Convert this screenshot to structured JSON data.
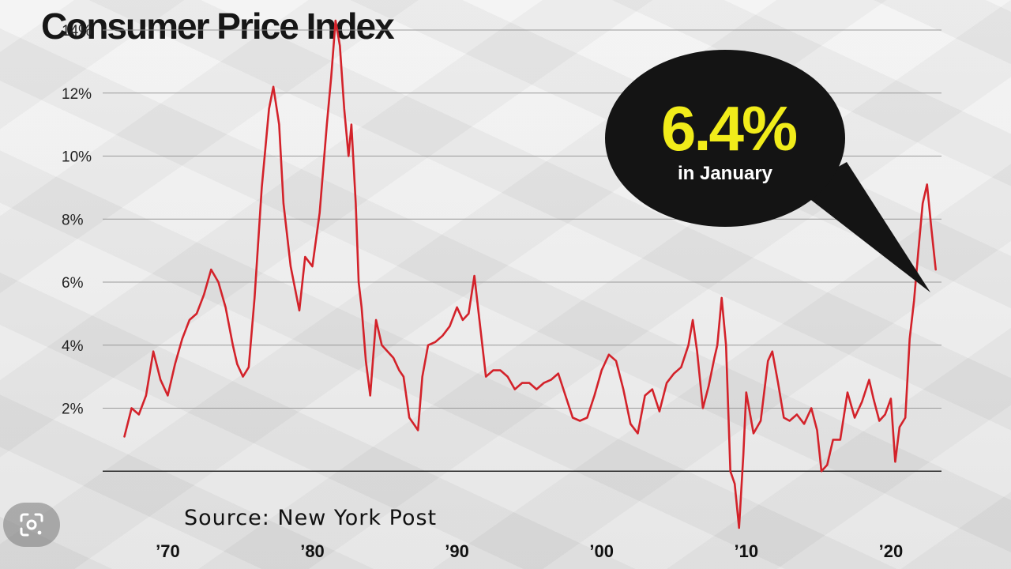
{
  "title": "Consumer Price Index",
  "source": "Source:  New York Post",
  "callout": {
    "value": "6.4%",
    "caption": "in January"
  },
  "colors": {
    "line": "#d3222a",
    "callout_bg": "#141414",
    "callout_value": "#f1ec1a",
    "grid": "#9a9a9a"
  },
  "lens_button": {
    "icon": "google-lens-icon"
  },
  "chart_data": {
    "type": "line",
    "title": "Consumer Price Index",
    "xlabel": "",
    "ylabel": "",
    "y_ticks": [
      "2%",
      "4%",
      "6%",
      "8%",
      "10%",
      "12%",
      "14%"
    ],
    "x_ticks": [
      "’70",
      "’80",
      "’90",
      "’00",
      "’10",
      "’20"
    ],
    "y_tick_values": [
      2,
      4,
      6,
      8,
      10,
      12,
      14
    ],
    "x_tick_values": [
      1970,
      1980,
      1990,
      2000,
      2010,
      2020
    ],
    "ylim": [
      -2,
      14
    ],
    "xlim": [
      1965.5,
      2023.5
    ],
    "grid": true,
    "legend": "none",
    "series": [
      {
        "values": [
          [
            1967.0,
            1.1
          ],
          [
            1967.5,
            2.0
          ],
          [
            1968.0,
            1.8
          ],
          [
            1968.5,
            2.4
          ],
          [
            1969.0,
            3.8
          ],
          [
            1969.5,
            2.9
          ],
          [
            1970.0,
            2.4
          ],
          [
            1970.5,
            3.4
          ],
          [
            1971.0,
            4.2
          ],
          [
            1971.5,
            4.8
          ],
          [
            1972.0,
            5.0
          ],
          [
            1972.5,
            5.6
          ],
          [
            1973.0,
            6.4
          ],
          [
            1973.5,
            6.0
          ],
          [
            1974.0,
            5.2
          ],
          [
            1974.5,
            4.0
          ],
          [
            1974.8,
            3.4
          ],
          [
            1975.2,
            3.0
          ],
          [
            1975.6,
            3.3
          ],
          [
            1976.0,
            5.5
          ],
          [
            1976.5,
            9.0
          ],
          [
            1977.0,
            11.5
          ],
          [
            1977.3,
            12.2
          ],
          [
            1977.7,
            11.0
          ],
          [
            1978.0,
            8.5
          ],
          [
            1978.5,
            6.5
          ],
          [
            1978.8,
            5.8
          ],
          [
            1979.1,
            5.1
          ],
          [
            1979.5,
            6.8
          ],
          [
            1980.0,
            6.5
          ],
          [
            1980.5,
            8.2
          ],
          [
            1981.0,
            11.0
          ],
          [
            1981.3,
            12.5
          ],
          [
            1981.6,
            14.3
          ],
          [
            1981.9,
            13.5
          ],
          [
            1982.2,
            11.5
          ],
          [
            1982.5,
            10.0
          ],
          [
            1982.7,
            11.0
          ],
          [
            1983.0,
            8.5
          ],
          [
            1983.2,
            6.0
          ],
          [
            1983.4,
            5.2
          ],
          [
            1983.7,
            3.5
          ],
          [
            1984.0,
            2.4
          ],
          [
            1984.4,
            4.8
          ],
          [
            1984.8,
            4.0
          ],
          [
            1985.2,
            3.8
          ],
          [
            1985.6,
            3.6
          ],
          [
            1986.0,
            3.2
          ],
          [
            1986.3,
            3.0
          ],
          [
            1986.7,
            1.7
          ],
          [
            1987.0,
            1.5
          ],
          [
            1987.3,
            1.3
          ],
          [
            1987.6,
            3.0
          ],
          [
            1988.0,
            4.0
          ],
          [
            1988.5,
            4.1
          ],
          [
            1989.0,
            4.3
          ],
          [
            1989.5,
            4.6
          ],
          [
            1990.0,
            5.2
          ],
          [
            1990.4,
            4.8
          ],
          [
            1990.8,
            5.0
          ],
          [
            1991.2,
            6.2
          ],
          [
            1991.6,
            4.6
          ],
          [
            1992.0,
            3.0
          ],
          [
            1992.5,
            3.2
          ],
          [
            1993.0,
            3.2
          ],
          [
            1993.5,
            3.0
          ],
          [
            1994.0,
            2.6
          ],
          [
            1994.5,
            2.8
          ],
          [
            1995.0,
            2.8
          ],
          [
            1995.5,
            2.6
          ],
          [
            1996.0,
            2.8
          ],
          [
            1996.5,
            2.9
          ],
          [
            1997.0,
            3.1
          ],
          [
            1997.5,
            2.4
          ],
          [
            1998.0,
            1.7
          ],
          [
            1998.5,
            1.6
          ],
          [
            1999.0,
            1.7
          ],
          [
            1999.5,
            2.4
          ],
          [
            2000.0,
            3.2
          ],
          [
            2000.5,
            3.7
          ],
          [
            2001.0,
            3.5
          ],
          [
            2001.5,
            2.6
          ],
          [
            2002.0,
            1.5
          ],
          [
            2002.5,
            1.2
          ],
          [
            2003.0,
            2.4
          ],
          [
            2003.5,
            2.6
          ],
          [
            2004.0,
            1.9
          ],
          [
            2004.5,
            2.8
          ],
          [
            2005.0,
            3.1
          ],
          [
            2005.5,
            3.3
          ],
          [
            2006.0,
            4.0
          ],
          [
            2006.3,
            4.8
          ],
          [
            2006.6,
            3.8
          ],
          [
            2007.0,
            2.0
          ],
          [
            2007.4,
            2.7
          ],
          [
            2007.8,
            3.6
          ],
          [
            2008.0,
            4.0
          ],
          [
            2008.3,
            5.5
          ],
          [
            2008.6,
            4.0
          ],
          [
            2008.9,
            0.0
          ],
          [
            2009.2,
            -0.4
          ],
          [
            2009.5,
            -1.8
          ],
          [
            2009.8,
            0.5
          ],
          [
            2010.0,
            2.5
          ],
          [
            2010.5,
            1.2
          ],
          [
            2011.0,
            1.6
          ],
          [
            2011.5,
            3.5
          ],
          [
            2011.8,
            3.8
          ],
          [
            2012.2,
            2.8
          ],
          [
            2012.6,
            1.7
          ],
          [
            2013.0,
            1.6
          ],
          [
            2013.5,
            1.8
          ],
          [
            2014.0,
            1.5
          ],
          [
            2014.5,
            2.0
          ],
          [
            2014.9,
            1.3
          ],
          [
            2015.2,
            0.0
          ],
          [
            2015.6,
            0.2
          ],
          [
            2016.0,
            1.0
          ],
          [
            2016.5,
            1.0
          ],
          [
            2017.0,
            2.5
          ],
          [
            2017.5,
            1.7
          ],
          [
            2018.0,
            2.2
          ],
          [
            2018.5,
            2.9
          ],
          [
            2018.8,
            2.3
          ],
          [
            2019.2,
            1.6
          ],
          [
            2019.6,
            1.8
          ],
          [
            2020.0,
            2.3
          ],
          [
            2020.3,
            0.3
          ],
          [
            2020.6,
            1.4
          ],
          [
            2021.0,
            1.7
          ],
          [
            2021.3,
            4.2
          ],
          [
            2021.6,
            5.4
          ],
          [
            2021.9,
            7.0
          ],
          [
            2022.2,
            8.5
          ],
          [
            2022.5,
            9.1
          ],
          [
            2022.8,
            7.7
          ],
          [
            2023.1,
            6.4
          ]
        ]
      }
    ],
    "annotation": {
      "text": "6.4% in January",
      "x": 2023.1,
      "y": 6.4
    }
  }
}
